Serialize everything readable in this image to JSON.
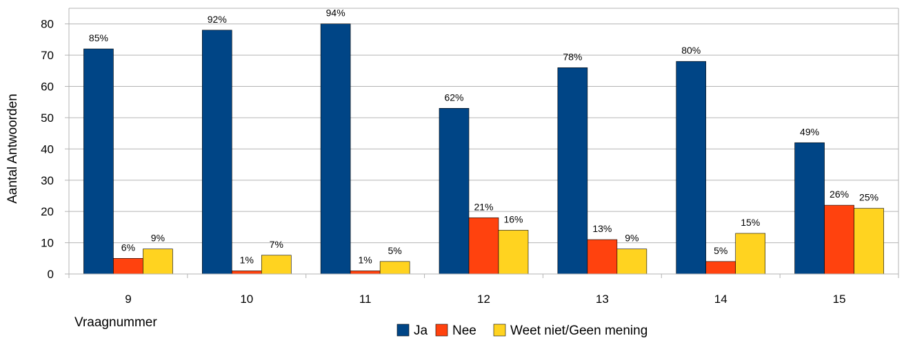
{
  "chart_data": {
    "type": "bar",
    "title": "",
    "xlabel": "Vraagnummer",
    "ylabel": "Aantal Antwoorden",
    "ylim": [
      0,
      85
    ],
    "yticks": [
      0,
      10,
      20,
      30,
      40,
      50,
      60,
      70,
      80
    ],
    "grid": true,
    "legend_position": "bottom",
    "categories": [
      "9",
      "10",
      "11",
      "12",
      "13",
      "14",
      "15"
    ],
    "series": [
      {
        "name": "Ja",
        "color": "#004586",
        "values": [
          72,
          78,
          80,
          53,
          66,
          68,
          42
        ],
        "labels": [
          "85%",
          "92%",
          "94%",
          "62%",
          "78%",
          "80%",
          "49%"
        ]
      },
      {
        "name": "Nee",
        "color": "#ff420e",
        "values": [
          5,
          1,
          1,
          18,
          11,
          4,
          22
        ],
        "labels": [
          "6%",
          "1%",
          "1%",
          "21%",
          "13%",
          "5%",
          "26%"
        ]
      },
      {
        "name": "Weet niet/Geen mening",
        "color": "#ffd320",
        "values": [
          8,
          6,
          4,
          14,
          8,
          13,
          21
        ],
        "labels": [
          "9%",
          "7%",
          "5%",
          "16%",
          "9%",
          "15%",
          "25%"
        ]
      }
    ]
  }
}
